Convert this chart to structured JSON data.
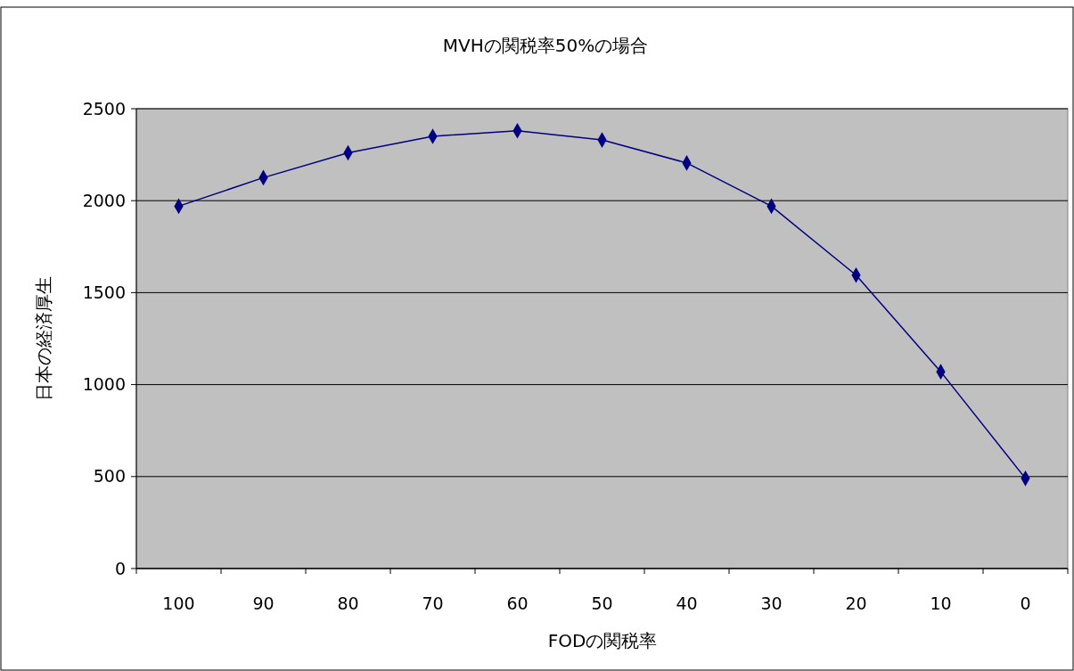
{
  "chart_data": {
    "type": "line",
    "title": "MVHの関税率50%の場合",
    "xlabel": "FODの関税率",
    "ylabel": "日本の経済厚生",
    "categories": [
      "100",
      "90",
      "80",
      "70",
      "60",
      "50",
      "40",
      "30",
      "20",
      "10",
      "0"
    ],
    "series": [
      {
        "color": "#000080",
        "values": [
          1970,
          2125,
          2260,
          2350,
          2380,
          2330,
          2205,
          1970,
          1595,
          1070,
          490
        ]
      }
    ],
    "ylim": [
      0,
      2500
    ],
    "yticks": [
      0,
      500,
      1000,
      1500,
      2000,
      2500
    ],
    "grid": "y",
    "marker": "diamond",
    "line_style": "solid"
  }
}
